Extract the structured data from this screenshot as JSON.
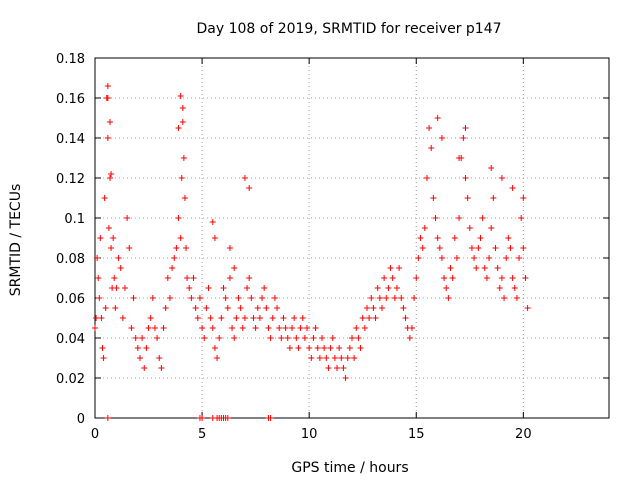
{
  "colors": {
    "marker": "#ff0000",
    "grid": "#a0a0a0",
    "axis": "#000000"
  },
  "chart_data": {
    "type": "scatter",
    "title": "Day 108 of 2019, SRMTID for receiver p147",
    "xlabel": "GPS time / hours",
    "ylabel": "SRMTID / TECUs",
    "xlim": [
      0,
      24
    ],
    "ylim": [
      0,
      0.18
    ],
    "xticks": [
      0,
      5,
      10,
      15,
      20
    ],
    "yticks": [
      0,
      0.02,
      0.04,
      0.06,
      0.08,
      0.1,
      0.12,
      0.14,
      0.16,
      0.18
    ],
    "grid": true,
    "marker": "+",
    "series": [
      {
        "name": "SRMTID",
        "x": [
          0.0,
          0.05,
          0.1,
          0.15,
          0.2,
          0.25,
          0.3,
          0.35,
          0.4,
          0.45,
          0.5,
          0.55,
          0.6,
          0.65,
          0.7,
          0.75,
          0.8,
          0.85,
          0.9,
          0.95,
          1.0,
          1.1,
          1.2,
          1.3,
          1.4,
          1.5,
          1.6,
          1.7,
          1.8,
          1.9,
          2.0,
          2.1,
          2.2,
          2.3,
          2.4,
          2.5,
          2.6,
          2.7,
          2.8,
          2.9,
          3.0,
          3.1,
          3.2,
          3.3,
          3.4,
          3.5,
          3.6,
          3.7,
          3.8,
          3.9,
          4.0,
          4.05,
          4.1,
          4.15,
          4.2,
          4.25,
          4.3,
          4.4,
          4.5,
          4.6,
          4.7,
          4.8,
          4.9,
          5.0,
          5.1,
          5.2,
          5.3,
          5.4,
          5.5,
          5.6,
          5.7,
          5.8,
          5.9,
          6.0,
          6.1,
          6.2,
          6.3,
          6.4,
          6.5,
          6.6,
          6.7,
          6.8,
          6.9,
          7.0,
          7.1,
          7.2,
          7.3,
          7.4,
          7.5,
          7.6,
          7.7,
          7.8,
          7.9,
          8.0,
          8.1,
          8.2,
          8.3,
          8.4,
          8.5,
          8.6,
          8.7,
          8.8,
          8.9,
          9.0,
          9.1,
          9.2,
          9.3,
          9.4,
          9.5,
          9.6,
          9.7,
          9.8,
          9.9,
          10.0,
          10.1,
          10.2,
          10.3,
          10.4,
          10.5,
          10.6,
          10.7,
          10.8,
          10.9,
          11.0,
          11.1,
          11.2,
          11.3,
          11.4,
          11.5,
          11.6,
          11.7,
          11.8,
          11.9,
          12.0,
          12.1,
          12.2,
          12.3,
          12.4,
          12.5,
          12.6,
          12.7,
          12.8,
          12.9,
          13.0,
          13.1,
          13.2,
          13.3,
          13.4,
          13.5,
          13.6,
          13.7,
          13.8,
          13.9,
          14.0,
          14.1,
          14.2,
          14.3,
          14.4,
          14.5,
          14.6,
          14.7,
          14.8,
          14.9,
          15.0,
          15.1,
          15.2,
          15.3,
          15.4,
          15.5,
          15.6,
          15.7,
          15.8,
          15.9,
          16.0,
          16.1,
          16.2,
          16.3,
          16.4,
          16.5,
          16.6,
          16.7,
          16.8,
          16.9,
          17.0,
          17.1,
          17.2,
          17.3,
          17.4,
          17.5,
          17.6,
          17.7,
          17.8,
          17.9,
          18.0,
          18.1,
          18.2,
          18.3,
          18.4,
          18.5,
          18.6,
          18.7,
          18.8,
          18.9,
          19.0,
          19.1,
          19.2,
          19.3,
          19.4,
          19.5,
          19.6,
          19.7,
          19.8,
          19.9,
          20.0,
          20.1,
          20.2,
          0.6,
          0.7,
          0.75,
          0.6,
          3.9,
          4.0,
          4.1,
          5.5,
          5.6,
          6.3,
          6.5,
          7.0,
          7.2,
          16.0,
          16.2,
          17.0,
          17.3,
          18.5,
          19.0,
          19.5,
          20.0,
          4.9,
          5.0,
          5.5,
          5.7,
          5.8,
          5.9,
          6.0,
          6.1,
          6.2,
          8.1,
          8.2,
          0.6
        ],
        "y": [
          0.045,
          0.05,
          0.08,
          0.07,
          0.06,
          0.09,
          0.05,
          0.035,
          0.03,
          0.11,
          0.055,
          0.16,
          0.14,
          0.095,
          0.12,
          0.085,
          0.065,
          0.09,
          0.07,
          0.055,
          0.065,
          0.08,
          0.075,
          0.05,
          0.065,
          0.1,
          0.085,
          0.045,
          0.06,
          0.04,
          0.035,
          0.03,
          0.04,
          0.025,
          0.035,
          0.045,
          0.05,
          0.06,
          0.045,
          0.04,
          0.03,
          0.025,
          0.045,
          0.055,
          0.07,
          0.06,
          0.075,
          0.08,
          0.085,
          0.1,
          0.09,
          0.12,
          0.155,
          0.13,
          0.11,
          0.085,
          0.07,
          0.065,
          0.06,
          0.07,
          0.055,
          0.05,
          0.06,
          0.045,
          0.04,
          0.055,
          0.065,
          0.05,
          0.045,
          0.035,
          0.03,
          0.04,
          0.05,
          0.065,
          0.06,
          0.055,
          0.07,
          0.045,
          0.04,
          0.05,
          0.06,
          0.055,
          0.045,
          0.05,
          0.065,
          0.07,
          0.06,
          0.05,
          0.045,
          0.055,
          0.05,
          0.06,
          0.065,
          0.055,
          0.045,
          0.04,
          0.05,
          0.06,
          0.055,
          0.045,
          0.04,
          0.05,
          0.045,
          0.04,
          0.035,
          0.045,
          0.05,
          0.04,
          0.035,
          0.045,
          0.05,
          0.04,
          0.045,
          0.035,
          0.03,
          0.04,
          0.045,
          0.035,
          0.03,
          0.04,
          0.035,
          0.03,
          0.025,
          0.035,
          0.04,
          0.03,
          0.025,
          0.035,
          0.03,
          0.025,
          0.02,
          0.03,
          0.035,
          0.04,
          0.03,
          0.045,
          0.04,
          0.035,
          0.05,
          0.045,
          0.055,
          0.05,
          0.06,
          0.055,
          0.05,
          0.065,
          0.06,
          0.055,
          0.07,
          0.06,
          0.065,
          0.075,
          0.07,
          0.06,
          0.065,
          0.075,
          0.06,
          0.055,
          0.05,
          0.045,
          0.04,
          0.045,
          0.06,
          0.07,
          0.08,
          0.09,
          0.085,
          0.095,
          0.12,
          0.145,
          0.135,
          0.11,
          0.1,
          0.09,
          0.085,
          0.08,
          0.07,
          0.065,
          0.06,
          0.075,
          0.07,
          0.09,
          0.08,
          0.1,
          0.13,
          0.14,
          0.12,
          0.11,
          0.095,
          0.085,
          0.08,
          0.075,
          0.085,
          0.09,
          0.1,
          0.075,
          0.07,
          0.08,
          0.095,
          0.11,
          0.085,
          0.075,
          0.065,
          0.07,
          0.06,
          0.08,
          0.09,
          0.085,
          0.07,
          0.065,
          0.06,
          0.08,
          0.1,
          0.085,
          0.07,
          0.055,
          0.166,
          0.148,
          0.122,
          0.16,
          0.145,
          0.161,
          0.148,
          0.098,
          0.09,
          0.085,
          0.075,
          0.12,
          0.115,
          0.15,
          0.14,
          0.13,
          0.145,
          0.125,
          0.12,
          0.115,
          0.11,
          0.0,
          0.0,
          0.0,
          0.0,
          0.0,
          0.0,
          0.0,
          0.0,
          0.0,
          0.0,
          0.0,
          0.0
        ]
      }
    ]
  }
}
